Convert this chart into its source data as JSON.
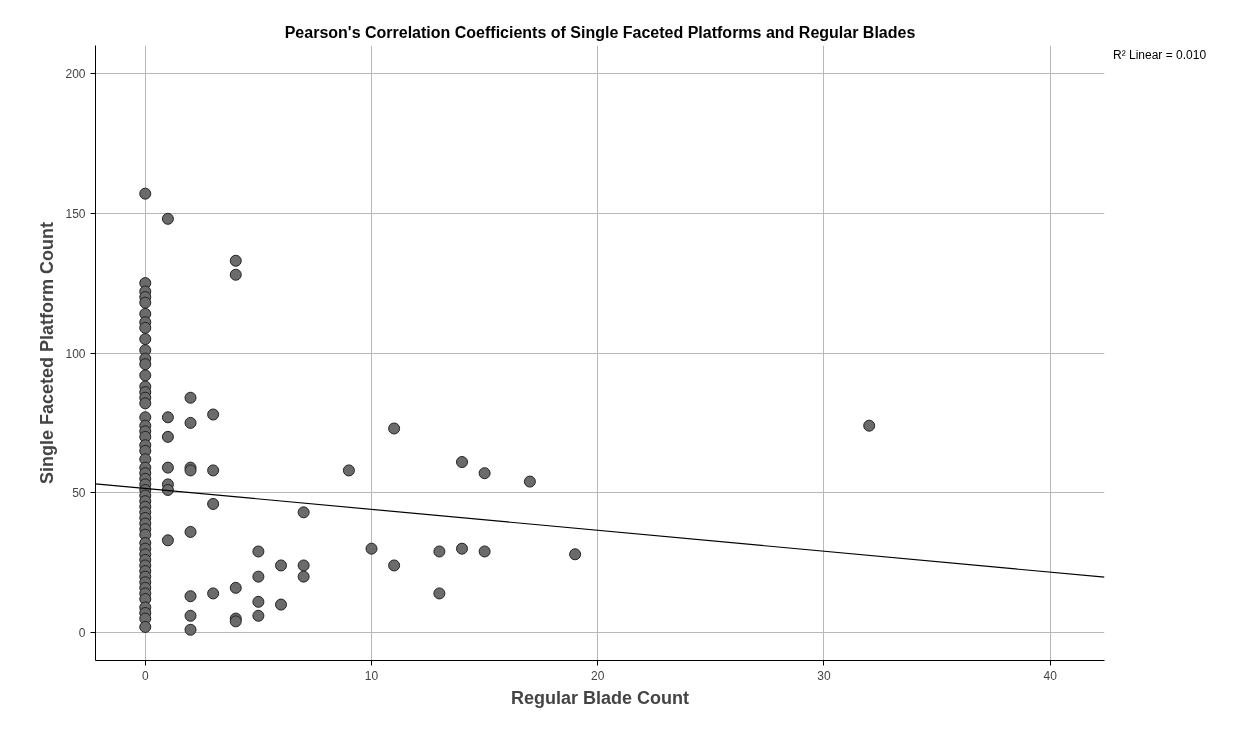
{
  "chart_data": {
    "type": "scatter",
    "title": "Pearson's Correlation Coefficients of Single Faceted Platforms and Regular Blades",
    "xlabel": "Regular Blade Count",
    "ylabel": "Single Faceted Platform Count",
    "annotations": [
      "R² Linear = 0.010"
    ],
    "xlim": [
      -2.2,
      42.4
    ],
    "ylim": [
      -10,
      210
    ],
    "xticks": [
      0,
      10,
      20,
      30,
      40
    ],
    "yticks": [
      0,
      50,
      100,
      150,
      200
    ],
    "grid": true,
    "legend": false,
    "series": [
      {
        "type": "scatter",
        "marker": "circle",
        "color": "#6b6b6b",
        "x": [
          0,
          0,
          0,
          0,
          0,
          0,
          0,
          0,
          0,
          0,
          0,
          0,
          0,
          0,
          0,
          0,
          0,
          0,
          0,
          0,
          0,
          0,
          0,
          0,
          0,
          0,
          0,
          0,
          0,
          0,
          0,
          0,
          0,
          0,
          0,
          0,
          0,
          0,
          0,
          0,
          0,
          0,
          0,
          0,
          0,
          0,
          0,
          0,
          0,
          0,
          0,
          0,
          1,
          1,
          1,
          1,
          1,
          1,
          1,
          2,
          2,
          2,
          2,
          2,
          2,
          2,
          2,
          3,
          3,
          3,
          3,
          4,
          4,
          4,
          4,
          4,
          5,
          5,
          5,
          5,
          6,
          6,
          7,
          7,
          7,
          9,
          10,
          11,
          11,
          13,
          13,
          14,
          14,
          15,
          15,
          17,
          19,
          32
        ],
        "values": [
          157,
          125,
          122,
          120,
          118,
          114,
          111,
          109,
          105,
          101,
          98,
          96,
          92,
          88,
          86,
          84,
          82,
          77,
          74,
          72,
          70,
          67,
          65,
          62,
          59,
          57,
          55,
          53,
          51,
          49,
          47,
          45,
          43,
          41,
          39,
          37,
          35,
          32,
          30,
          28,
          26,
          24,
          22,
          20,
          18,
          16,
          14,
          12,
          9,
          7,
          5,
          2,
          148,
          77,
          70,
          59,
          53,
          51,
          33,
          84,
          75,
          59,
          58,
          36,
          13,
          6,
          1,
          78,
          58,
          46,
          14,
          133,
          128,
          16,
          5,
          4,
          29,
          20,
          11,
          6,
          24,
          10,
          43,
          24,
          20,
          58,
          30,
          73,
          24,
          29,
          14,
          61,
          30,
          57,
          29,
          54,
          28,
          74
        ]
      },
      {
        "type": "line",
        "marker": "none",
        "color": "#000000",
        "x": [
          -2.2,
          42.4
        ],
        "values": [
          53.2,
          19.8
        ]
      }
    ]
  }
}
